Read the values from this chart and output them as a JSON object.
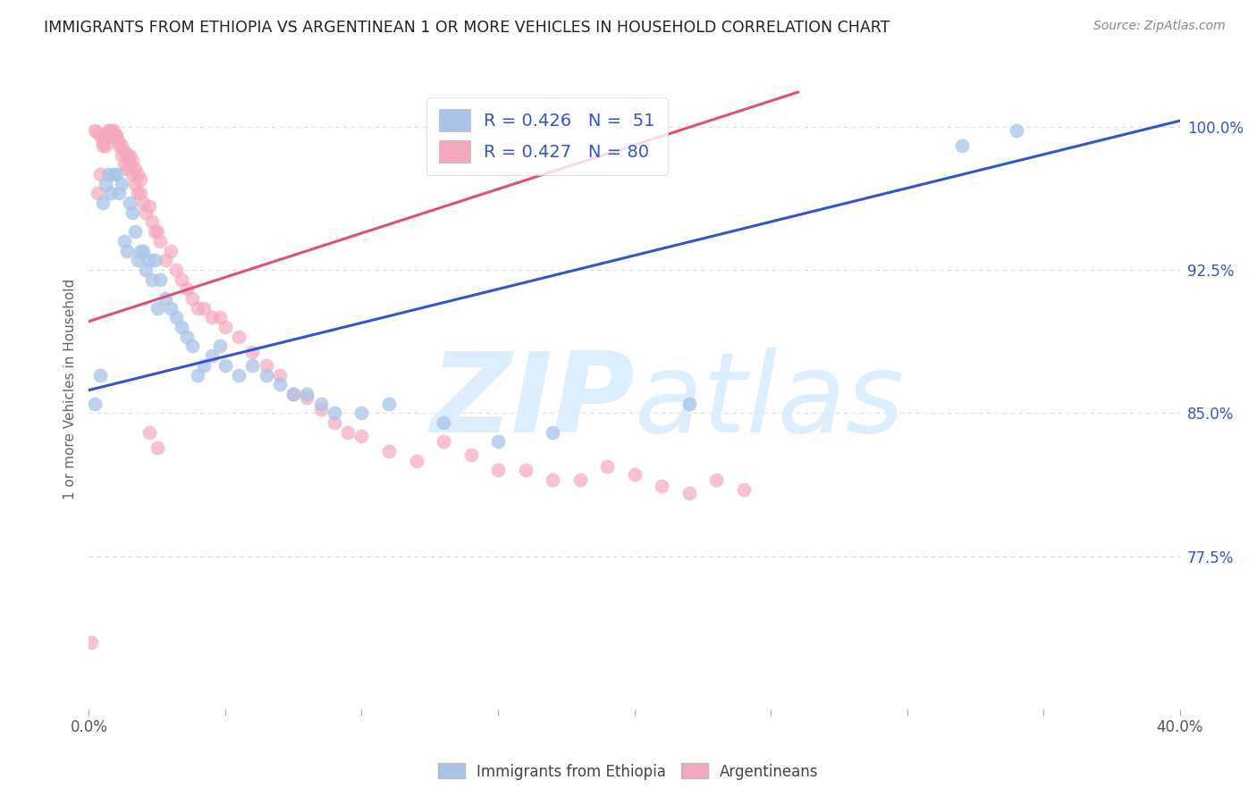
{
  "title": "IMMIGRANTS FROM ETHIOPIA VS ARGENTINEAN 1 OR MORE VEHICLES IN HOUSEHOLD CORRELATION CHART",
  "source": "Source: ZipAtlas.com",
  "ylabel": "1 or more Vehicles in Household",
  "ytick_labels": [
    "100.0%",
    "92.5%",
    "85.0%",
    "77.5%"
  ],
  "ytick_values": [
    1.0,
    0.925,
    0.85,
    0.775
  ],
  "xlim": [
    0.0,
    0.4
  ],
  "ylim": [
    0.695,
    1.03
  ],
  "legend_blue_label": "R = 0.426   N =  51",
  "legend_pink_label": "R = 0.427   N = 80",
  "legend_color_text": "#3355cc",
  "blue_color": "#aac4e8",
  "pink_color": "#f4a8be",
  "blue_line_color": "#3355cc",
  "pink_line_color": "#e05070",
  "watermark_zip": "ZIP",
  "watermark_atlas": "atlas",
  "watermark_color": "#ddeeff",
  "blue_scatter_x": [
    0.002,
    0.004,
    0.005,
    0.006,
    0.007,
    0.008,
    0.009,
    0.01,
    0.011,
    0.012,
    0.013,
    0.014,
    0.015,
    0.016,
    0.017,
    0.018,
    0.019,
    0.02,
    0.021,
    0.022,
    0.023,
    0.024,
    0.025,
    0.026,
    0.028,
    0.03,
    0.032,
    0.034,
    0.036,
    0.038,
    0.04,
    0.042,
    0.045,
    0.048,
    0.05,
    0.055,
    0.06,
    0.065,
    0.07,
    0.075,
    0.08,
    0.085,
    0.09,
    0.1,
    0.11,
    0.13,
    0.15,
    0.17,
    0.22,
    0.32,
    0.34
  ],
  "blue_scatter_y": [
    0.855,
    0.87,
    0.96,
    0.97,
    0.975,
    0.965,
    0.975,
    0.975,
    0.965,
    0.97,
    0.94,
    0.935,
    0.96,
    0.955,
    0.945,
    0.93,
    0.935,
    0.935,
    0.925,
    0.93,
    0.92,
    0.93,
    0.905,
    0.92,
    0.91,
    0.905,
    0.9,
    0.895,
    0.89,
    0.885,
    0.87,
    0.875,
    0.88,
    0.885,
    0.875,
    0.87,
    0.875,
    0.87,
    0.865,
    0.86,
    0.86,
    0.855,
    0.85,
    0.85,
    0.855,
    0.845,
    0.835,
    0.84,
    0.855,
    0.99,
    0.998
  ],
  "pink_scatter_x": [
    0.001,
    0.003,
    0.004,
    0.005,
    0.006,
    0.007,
    0.008,
    0.009,
    0.01,
    0.011,
    0.012,
    0.013,
    0.014,
    0.015,
    0.016,
    0.017,
    0.018,
    0.019,
    0.02,
    0.021,
    0.022,
    0.023,
    0.024,
    0.025,
    0.026,
    0.028,
    0.03,
    0.032,
    0.034,
    0.036,
    0.038,
    0.04,
    0.042,
    0.045,
    0.048,
    0.05,
    0.055,
    0.06,
    0.065,
    0.07,
    0.075,
    0.08,
    0.085,
    0.09,
    0.095,
    0.1,
    0.11,
    0.12,
    0.13,
    0.14,
    0.15,
    0.16,
    0.17,
    0.18,
    0.19,
    0.2,
    0.21,
    0.22,
    0.23,
    0.24,
    0.002,
    0.003,
    0.004,
    0.005,
    0.006,
    0.007,
    0.008,
    0.009,
    0.01,
    0.011,
    0.012,
    0.013,
    0.014,
    0.015,
    0.016,
    0.017,
    0.018,
    0.019,
    0.022,
    0.025
  ],
  "pink_scatter_y": [
    0.73,
    0.965,
    0.975,
    0.99,
    0.995,
    0.998,
    0.998,
    0.995,
    0.995,
    0.99,
    0.985,
    0.98,
    0.978,
    0.98,
    0.975,
    0.97,
    0.965,
    0.965,
    0.96,
    0.955,
    0.958,
    0.95,
    0.945,
    0.945,
    0.94,
    0.93,
    0.935,
    0.925,
    0.92,
    0.915,
    0.91,
    0.905,
    0.905,
    0.9,
    0.9,
    0.895,
    0.89,
    0.882,
    0.875,
    0.87,
    0.86,
    0.858,
    0.852,
    0.845,
    0.84,
    0.838,
    0.83,
    0.825,
    0.835,
    0.828,
    0.82,
    0.82,
    0.815,
    0.815,
    0.822,
    0.818,
    0.812,
    0.808,
    0.815,
    0.81,
    0.998,
    0.997,
    0.995,
    0.992,
    0.99,
    0.995,
    0.998,
    0.998,
    0.995,
    0.992,
    0.99,
    0.987,
    0.985,
    0.985,
    0.982,
    0.978,
    0.975,
    0.972,
    0.84,
    0.832
  ],
  "blue_line_x": [
    0.0,
    0.4
  ],
  "blue_line_y": [
    0.862,
    1.003
  ],
  "pink_line_x": [
    0.0,
    0.26
  ],
  "pink_line_y": [
    0.898,
    1.018
  ],
  "background_color": "#ffffff",
  "grid_color": "#dddddd"
}
